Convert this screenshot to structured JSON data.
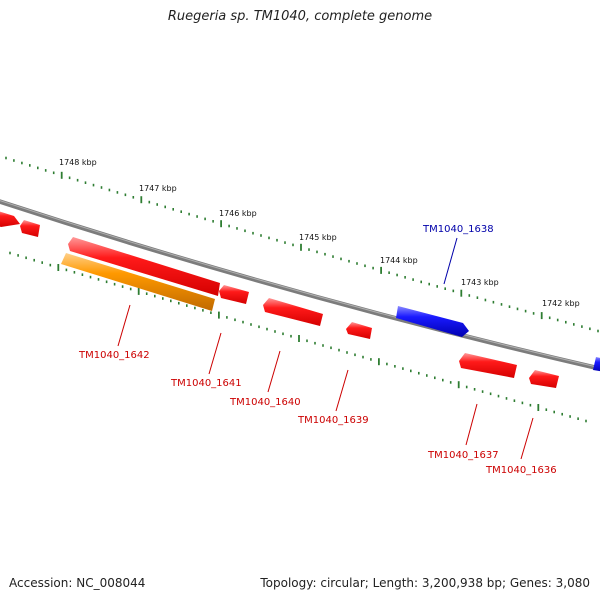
{
  "title": "Ruegeria sp. TM1040, complete genome",
  "footer": {
    "accession": "Accession: NC_008044",
    "summary": "Topology: circular; Length: 3,200,938 bp; Genes: 3,080"
  },
  "colors": {
    "backbone": "#808080",
    "tick": "#2e7d32",
    "reverse_gene": "#ff0000",
    "forward_gene": "#0000ee",
    "highlight_gene": "#ff9900",
    "label_reverse": "#cc0000",
    "label_forward": "#0000aa"
  },
  "scale_labels": [
    "1748 kbp",
    "1747 kbp",
    "1746 kbp",
    "1745 kbp",
    "1744 kbp",
    "1743 kbp",
    "1742 kbp"
  ],
  "gene_labels": [
    {
      "id": "TM1040_1642",
      "strand": "reverse"
    },
    {
      "id": "TM1040_1641",
      "strand": "reverse"
    },
    {
      "id": "TM1040_1640",
      "strand": "reverse"
    },
    {
      "id": "TM1040_1639",
      "strand": "reverse"
    },
    {
      "id": "TM1040_1638",
      "strand": "forward"
    },
    {
      "id": "TM1040_1637",
      "strand": "reverse"
    },
    {
      "id": "TM1040_1636",
      "strand": "reverse"
    }
  ]
}
